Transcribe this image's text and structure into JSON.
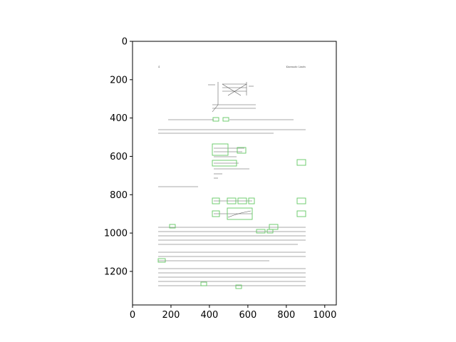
{
  "figure": {
    "x_ticks": [
      "0",
      "200",
      "400",
      "600",
      "800",
      "1000"
    ],
    "y_ticks": [
      "0",
      "200",
      "400",
      "600",
      "800",
      "1000",
      "1200"
    ],
    "x_tick_values": [
      0,
      200,
      400,
      600,
      800,
      1000
    ],
    "y_tick_values": [
      0,
      200,
      400,
      600,
      800,
      1000,
      1200
    ],
    "x_range": [
      0,
      1060
    ],
    "y_range": [
      0,
      1375
    ],
    "image_extent": [
      0,
      1060,
      0,
      1375
    ],
    "annotation_color": "#63c763",
    "ink_color": "#555555"
  },
  "document": {
    "page_number": "4",
    "running_header": "Kinematic Limits"
  }
}
